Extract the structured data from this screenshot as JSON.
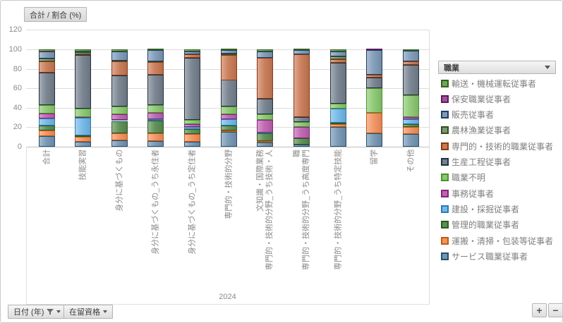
{
  "widget": {
    "value_field_label": "合計 / 割合 (%)",
    "filters": [
      {
        "label": "日付 (年)",
        "has_filter_icon": true
      },
      {
        "label": "在留資格",
        "has_filter_icon": false
      }
    ],
    "zoom_in_label": "+",
    "zoom_out_label": "−"
  },
  "legend": {
    "header": "職業",
    "order": "reverse-of-stack"
  },
  "chart_data": {
    "type": "bar",
    "stacked": true,
    "percent": true,
    "title": "合計 / 割合 (%)",
    "xlabel": "2024",
    "ylabel": "",
    "ylim": [
      0,
      120
    ],
    "yticks": [
      0,
      20,
      40,
      60,
      80,
      100,
      120
    ],
    "grid": true,
    "legend_position": "right",
    "categories": [
      "合計",
      "技能実習",
      "身分に基づくもの",
      "身分に基づくもの_うち永住者",
      "身分に基づくもの_うち定住者",
      "専門的・技術的分野",
      "専門的・技術的分野_うち技術・人文知識・国際業務",
      "専門的・技術的分野_うち高度専門職",
      "専門的・技術的分野_うち特定技能",
      "留学",
      "その他"
    ],
    "category_label_lines": [
      [
        "合計"
      ],
      [
        "技能実習"
      ],
      [
        "身分に基づくもの"
      ],
      [
        "身分に基づくもの_うち永住者"
      ],
      [
        "身分に基づくもの_うち定住者"
      ],
      [
        "専門的・技術的分野"
      ],
      [
        "専門的・技術的分野_うち技術・人",
        "文知識・国際業務"
      ],
      [
        "専門的・技術的分野_うち高度専門",
        "職"
      ],
      [
        "専門的・技術的分野_うち特定技能"
      ],
      [
        "留学"
      ],
      [
        "その他"
      ]
    ],
    "series": [
      {
        "name": "サービス職業従事者",
        "fill": "#7596b3",
        "border": "#27506b",
        "values": [
          11,
          5,
          6.5,
          6,
          5,
          15,
          4.5,
          2.5,
          20,
          14,
          13
        ]
      },
      {
        "name": "運搬・清掃・包装等従事者",
        "fill": "#f29260",
        "border": "#c55a11",
        "values": [
          6,
          5.5,
          7,
          7.5,
          8,
          1.5,
          1,
          0,
          3.5,
          21,
          7
        ]
      },
      {
        "name": "管理的職業従事者",
        "fill": "#5a8e53",
        "border": "#2a5b22",
        "values": [
          5,
          1,
          13,
          13.5,
          5,
          5,
          8,
          6,
          1.5,
          0,
          3
        ]
      },
      {
        "name": "建設・採掘従事者",
        "fill": "#73b8e8",
        "border": "#2a7cb5",
        "values": [
          7,
          18.5,
          1,
          1,
          2.5,
          7,
          1,
          0,
          14,
          0,
          5
        ]
      },
      {
        "name": "事務従事者",
        "fill": "#bf63b2",
        "border": "#85267d",
        "values": [
          5,
          0.5,
          6,
          7,
          2.5,
          5,
          13,
          12,
          0,
          0,
          2.5
        ]
      },
      {
        "name": "職業不明",
        "fill": "#8bc871",
        "border": "#4b9130",
        "values": [
          9,
          9,
          8,
          8,
          4.5,
          8,
          6,
          5,
          5,
          25,
          22.5
        ]
      },
      {
        "name": "生産工程従事者",
        "fill": "#75818e",
        "border": "#23313f",
        "values": [
          33,
          55,
          32,
          31,
          64,
          27,
          15.5,
          5,
          42.5,
          11,
          31
        ]
      },
      {
        "name": "専門的・技術的職業従事者",
        "fill": "#c97a55",
        "border": "#8a3a15",
        "values": [
          12,
          0.5,
          14,
          13,
          3.5,
          25.5,
          42,
          64.5,
          3.5,
          3,
          3.5
        ]
      },
      {
        "name": "農林漁業従事者",
        "fill": "#7f9673",
        "border": "#32511f",
        "values": [
          2.5,
          2.5,
          1,
          0.5,
          0,
          2,
          0,
          0,
          3,
          0,
          0
        ]
      },
      {
        "name": "販売従事者",
        "fill": "#7e9ab8",
        "border": "#1f3e63",
        "values": [
          7,
          0.5,
          9.5,
          12,
          3,
          3,
          7,
          4,
          5,
          25,
          11
        ]
      },
      {
        "name": "保安職業従事者",
        "fill": "#a0539b",
        "border": "#5c1a57",
        "values": [
          0.5,
          0,
          0,
          0,
          0,
          0,
          0,
          0,
          0,
          1,
          0
        ]
      },
      {
        "name": "輸送・機械運転従事者",
        "fill": "#6fa558",
        "border": "#33601f",
        "values": [
          2,
          2,
          2,
          0.5,
          2,
          1,
          2,
          1,
          2,
          0,
          1.5
        ]
      }
    ]
  }
}
